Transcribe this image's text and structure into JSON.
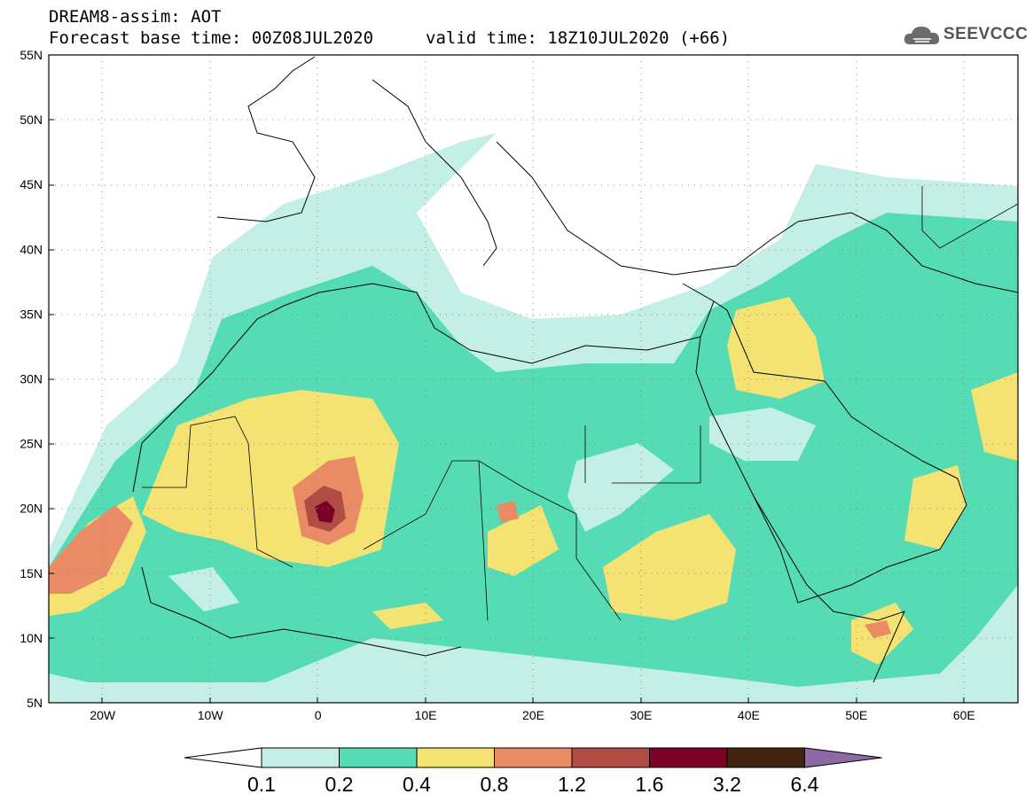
{
  "header": {
    "title": "DREAM8-assim: AOT",
    "base_time": "Forecast base time: 00Z08JUL2020",
    "valid_time": "valid time: 18Z10JUL2020 (+66)",
    "logo_text": "SEEVCCC"
  },
  "map": {
    "lon_range": [
      -25,
      65
    ],
    "lat_range": [
      5,
      55
    ],
    "lat_labels": [
      "55N",
      "50N",
      "45N",
      "40N",
      "35N",
      "30N",
      "25N",
      "20N",
      "15N",
      "10N",
      "5N"
    ],
    "lon_labels": [
      "20W",
      "10W",
      "0",
      "10E",
      "20E",
      "30E",
      "40E",
      "50E",
      "60E"
    ],
    "background": "#ffffff",
    "grid": "dotted"
  },
  "colorbar": {
    "levels": [
      "0.1",
      "0.2",
      "0.4",
      "0.8",
      "1.2",
      "1.6",
      "3.2",
      "6.4"
    ],
    "colors": [
      "#ffffff",
      "#c3efe7",
      "#55dcb4",
      "#f4e372",
      "#e98b65",
      "#b04c44",
      "#7a0026",
      "#42240e",
      "#8e6aa4"
    ]
  }
}
